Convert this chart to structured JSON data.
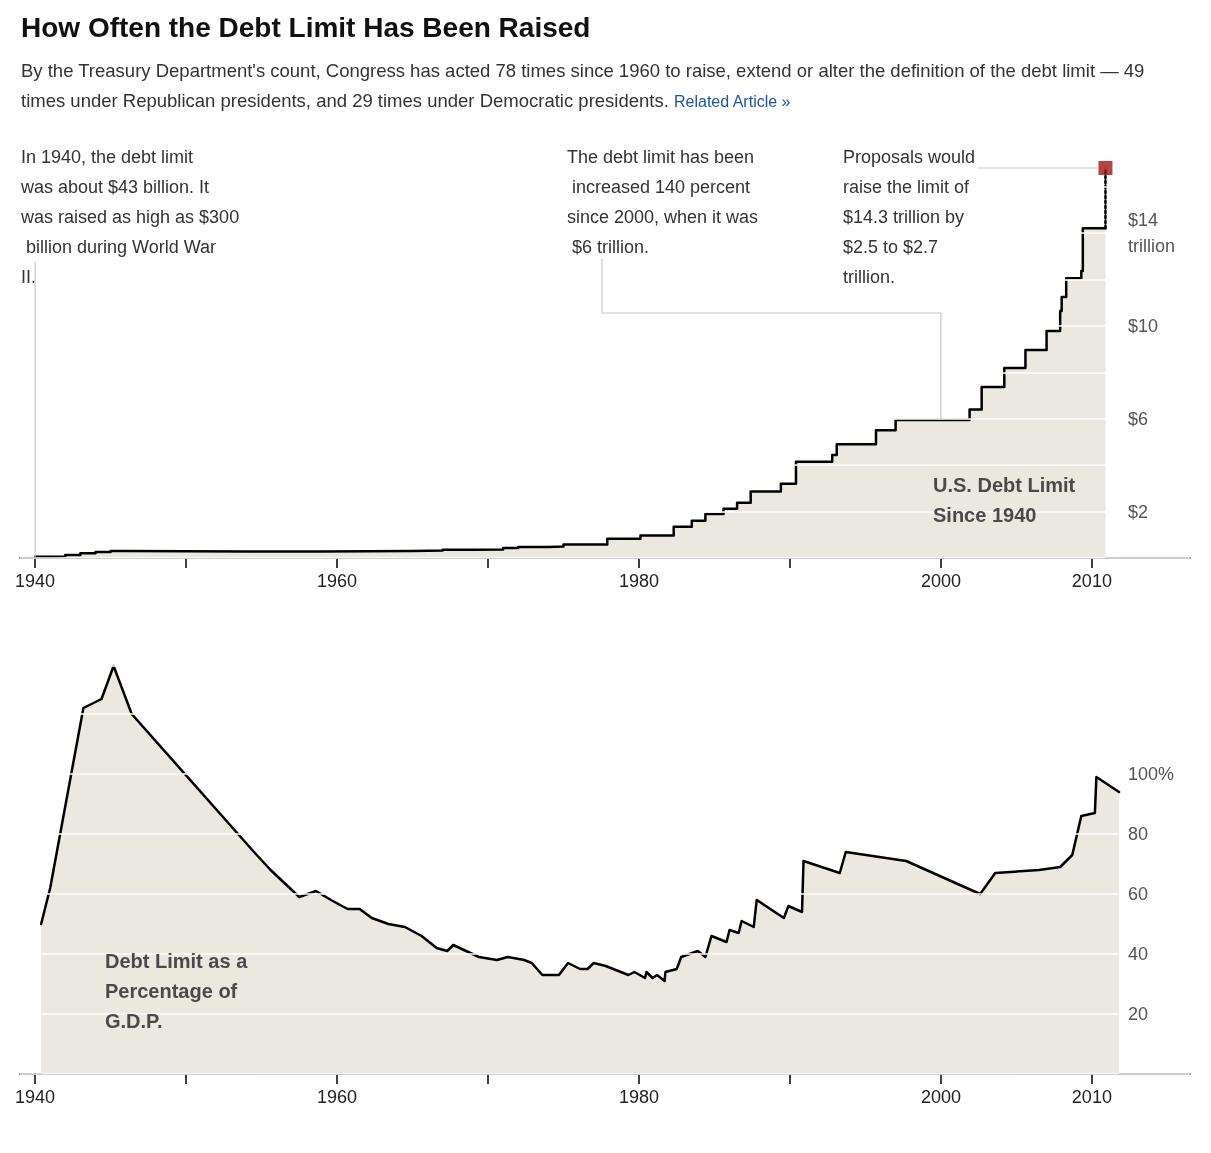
{
  "chart_data": [
    {
      "type": "step",
      "title": "How Often the Debt Limit Has Been Raised",
      "subtitle": "By the Treasury Department's count, Congress has acted 78 times since 1960 to raise, extend or alter the definition of the debt limit — 49 times under Republican presidents, and 29 times under Democratic presidents.",
      "annotations": [
        {
          "text": "In 1940, the debt limit was about $43 billion. It was raised as high as $300 billion during World War II.",
          "x": 1940,
          "y": 0.05
        },
        {
          "text": "The debt limit has been increased 140 percent since 2000, when it was $6 trillion.",
          "x": 2000,
          "y": 5.95
        },
        {
          "text": "Proposals would raise the limit of $14.3 trillion by $2.5 to $2.7 trillion.",
          "x": 2010.9,
          "y": 16.8
        },
        "U.S. Debt Limit Since 1940",
        "Related Article »"
      ],
      "xlim": [
        1939,
        2016.5
      ],
      "xticks": [
        1940,
        {
          "value": 1950,
          "label": null
        },
        1960,
        {
          "value": 1970,
          "label": null
        },
        1980,
        {
          "value": 1990,
          "label": null
        },
        2000,
        2010
      ],
      "ylim": [
        0,
        16.8
      ],
      "yticks": [
        {
          "value": 2,
          "label": "$2"
        },
        {
          "value": 4,
          "label": null
        },
        {
          "value": 6,
          "label": "$6"
        },
        {
          "value": 8,
          "label": null
        },
        {
          "value": 10,
          "label": "$10"
        },
        {
          "value": 12,
          "label": null
        },
        {
          "value": 14,
          "label": "$14\ntrillion"
        }
      ],
      "grid": "y",
      "marker": "none",
      "series": [
        {
          "color": "#000000",
          "x": [
            1940,
            1941,
            1942,
            1943,
            1944,
            1945,
            1946,
            1954,
            1958,
            1959,
            1962,
            1965,
            1967,
            1969,
            1971,
            1972,
            1974,
            1975,
            1977.9,
            1980.1,
            1982.3,
            1983.5,
            1984.4,
            1985.6,
            1986.5,
            1987.4,
            1989.4,
            1990.4,
            1992.8,
            1993.1,
            1995.7,
            1997.0,
            2001.9,
            2002.7,
            2004.2,
            2005.6,
            2007.0,
            2007.9,
            2008.0,
            2008.3,
            2009.3,
            2009.4,
            2010.9
          ],
          "values": [
            0.05,
            0.07,
            0.13,
            0.21,
            0.26,
            0.3,
            0.28,
            0.28,
            0.28,
            0.29,
            0.3,
            0.32,
            0.36,
            0.37,
            0.43,
            0.47,
            0.5,
            0.58,
            0.83,
            0.97,
            1.35,
            1.6,
            1.9,
            2.12,
            2.38,
            2.86,
            3.2,
            4.15,
            4.44,
            4.9,
            5.5,
            5.95,
            6.4,
            7.37,
            8.19,
            8.96,
            9.78,
            10.64,
            11.24,
            12.05,
            12.36,
            14.2,
            14.2
          ]
        },
        {
          "type": "line",
          "color": "#000000",
          "line_style": "dotted",
          "x": [
            2010.9,
            2010.9
          ],
          "values": [
            14.2,
            16.8
          ]
        },
        {
          "type": "scatter",
          "color": "#a31515",
          "marker": "square",
          "x": [
            2010.9
          ],
          "values": [
            16.8
          ]
        }
      ]
    },
    {
      "type": "area",
      "annotations": [
        "Debt Limit as a Percentage of G.D.P."
      ],
      "xlim": [
        1939,
        2016.5
      ],
      "xticks": [
        1940,
        {
          "value": 1950,
          "label": null
        },
        1960,
        {
          "value": 1970,
          "label": null
        },
        1980,
        {
          "value": 1990,
          "label": null
        },
        2000,
        2010
      ],
      "ylim": [
        0,
        136
      ],
      "yticks": [
        20,
        40,
        60,
        80,
        {
          "value": 100,
          "label": "100%"
        }
      ],
      "grid": "y",
      "marker": "none",
      "series": [
        {
          "color": "#ebe8df",
          "x": [
            1940.4,
            1941.0,
            1943.2,
            1944.4,
            1945.2,
            1946.4,
            1954.5,
            1955.6,
            1957.5,
            1958.6,
            1959.6,
            1960.7,
            1961.5,
            1962.3,
            1963.4,
            1964.5,
            1965.6,
            1966.6,
            1967.3,
            1967.7,
            1969.4,
            1970.6,
            1971.3,
            1972.4,
            1972.9,
            1973.6,
            1974.7,
            1975.3,
            1976.1,
            1976.6,
            1977.0,
            1977.8,
            1978.3,
            1979.3,
            1979.7,
            1980.4,
            1980.5,
            1980.9,
            1981.2,
            1981.7,
            1981.75,
            1982.5,
            1982.8,
            1983.9,
            1984.4,
            1984.8,
            1985.8,
            1986.0,
            1986.6,
            1986.8,
            1987.6,
            1987.8,
            1989.6,
            1989.9,
            1990.8,
            1990.9,
            1993.3,
            1993.7,
            1997.7,
            2002.6,
            2003.6,
            2006.5,
            2007.9,
            2008.7,
            2009.3,
            2010.2,
            2010.3,
            2011.8
          ],
          "values": [
            50,
            62,
            122,
            125,
            136,
            120,
            74,
            68,
            59,
            61,
            58,
            55,
            55,
            52,
            50,
            49,
            46,
            42,
            41,
            43,
            39,
            38,
            39,
            38,
            37,
            33,
            33,
            37,
            35,
            35,
            37,
            36,
            35,
            33,
            34,
            32,
            34,
            32,
            33,
            31,
            34,
            35,
            39,
            41,
            39,
            46,
            44,
            48,
            47,
            51,
            49,
            58,
            52,
            56,
            54,
            71,
            67,
            74,
            71,
            60,
            67,
            68,
            69,
            73,
            86,
            87,
            99,
            94
          ]
        }
      ]
    }
  ]
}
